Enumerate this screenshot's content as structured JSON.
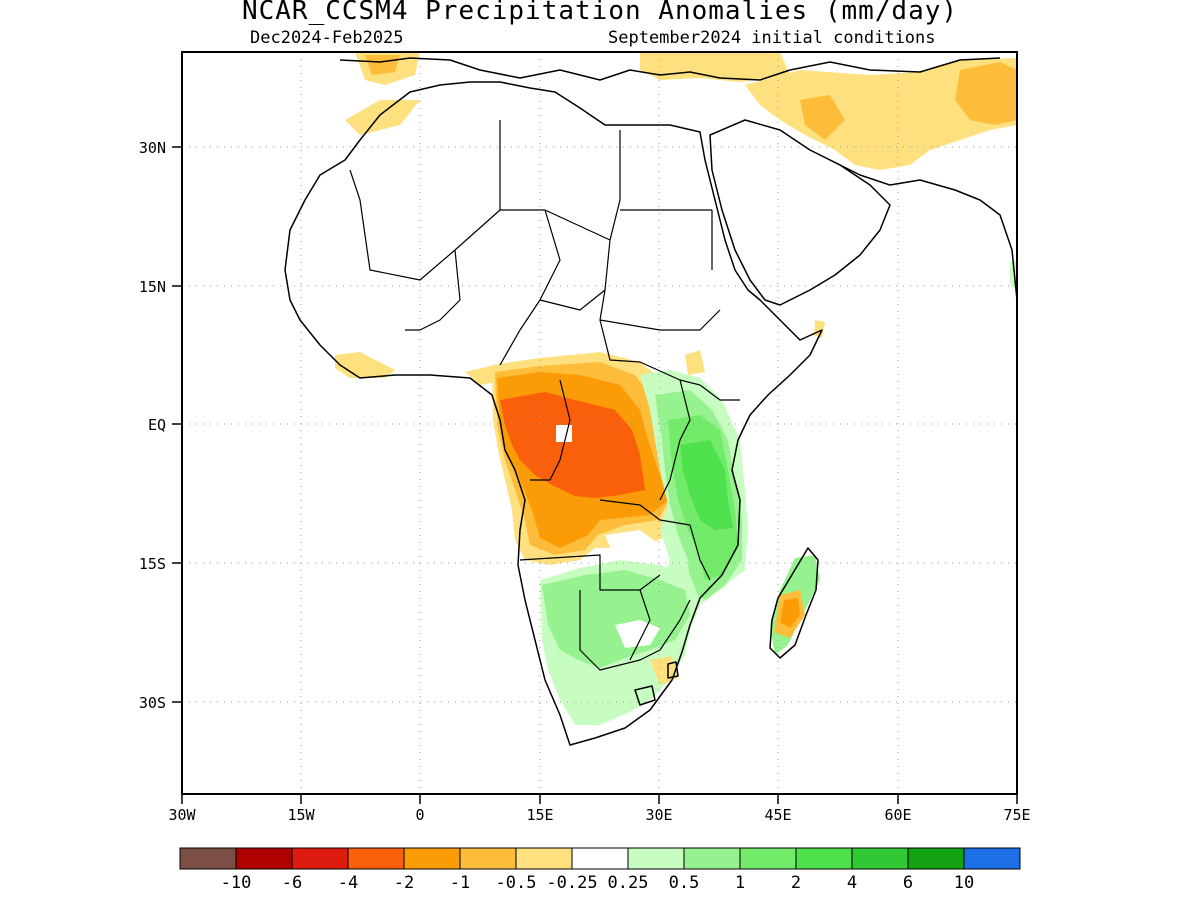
{
  "title": "NCAR_CCSM4 Precipitation Anomalies (mm/day)",
  "subtitle_left": "Dec2024-Feb2025",
  "subtitle_right": "September2024 initial conditions",
  "map": {
    "region": "Africa",
    "lon_range": [
      -30,
      75
    ],
    "lat_range": [
      -40,
      40
    ],
    "grid": true,
    "lon_ticks": [
      "30W",
      "15W",
      "0",
      "15E",
      "30E",
      "45E",
      "60E",
      "75E"
    ],
    "lat_ticks": [
      "30N",
      "15N",
      "EQ",
      "15S",
      "30S"
    ]
  },
  "colorbar": {
    "colors": [
      "#7b4f45",
      "#b00000",
      "#dd1b0e",
      "#fa5f0c",
      "#fb9b06",
      "#fdbd3b",
      "#fee07e",
      "#ffffff",
      "#c8fdc2",
      "#96f28e",
      "#72eb6a",
      "#4fe14d",
      "#32c735",
      "#12a212",
      "#1d6fe6"
    ],
    "labels": [
      "-10",
      "-6",
      "-4",
      "-2",
      "-1",
      "-0.5",
      "-0.25",
      "0.25",
      "0.5",
      "1",
      "2",
      "4",
      "6",
      "10"
    ]
  },
  "anomaly_regions": [
    {
      "name": "congo-basin-dry",
      "level": "-4 to -2"
    },
    {
      "name": "angola-dry",
      "level": "-2 to -1"
    },
    {
      "name": "east-africa-wet",
      "level": "2 to 4"
    },
    {
      "name": "southern-africa-wet",
      "level": "0.5 to 1"
    },
    {
      "name": "madagascar-dry",
      "level": "-2 to -1"
    },
    {
      "name": "middle-east-dry",
      "level": "-1 to -0.5"
    }
  ]
}
